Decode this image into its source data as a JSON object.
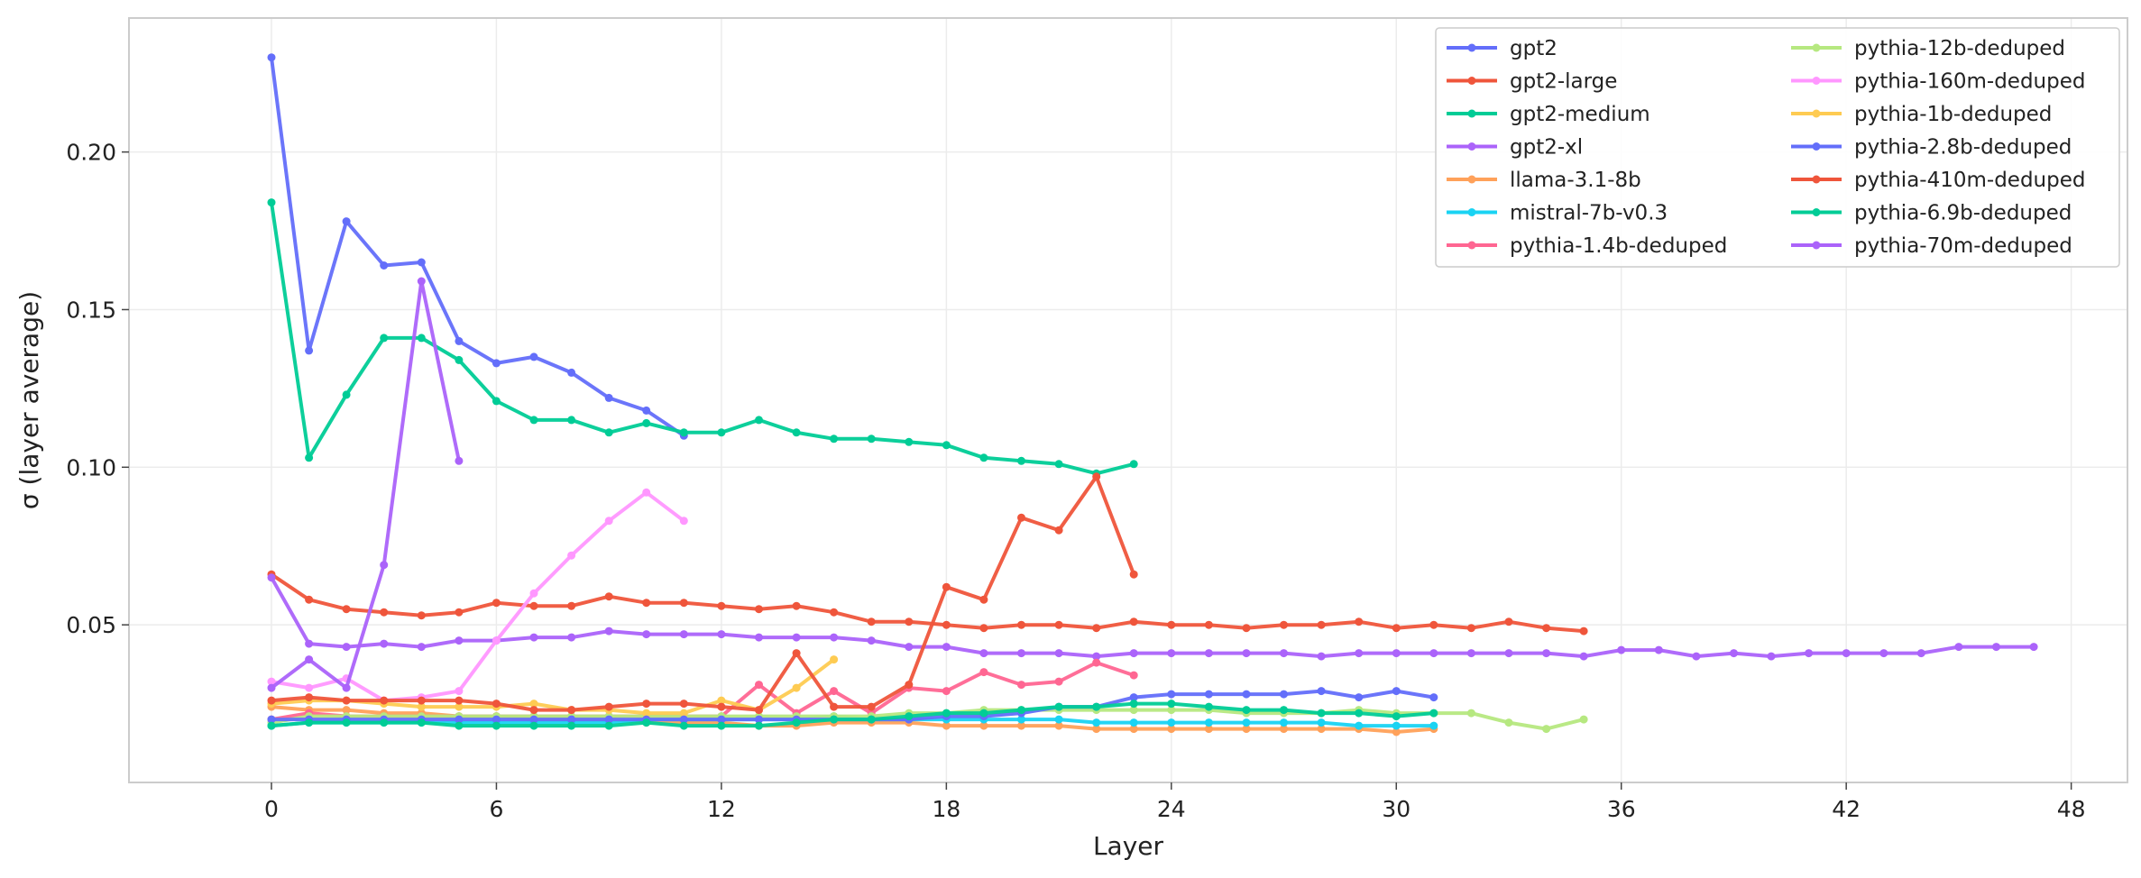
{
  "chart_data": {
    "type": "line",
    "xlabel": "Layer",
    "ylabel": "σ (layer average)",
    "xlim": [
      -3.8,
      49.5
    ],
    "ylim": [
      0.0,
      0.2425
    ],
    "xticks": [
      0,
      6,
      12,
      18,
      24,
      30,
      36,
      42,
      48
    ],
    "yticks": [
      0.05,
      0.1,
      0.15,
      0.2
    ],
    "ytick_labels": [
      "0.05",
      "0.10",
      "0.15",
      "0.20"
    ],
    "grid": true,
    "legend_position": "top-right",
    "legend_columns": 2,
    "series": [
      {
        "name": "gpt2",
        "color": "#636efa",
        "x": [
          0,
          1,
          2,
          3,
          4,
          5,
          6,
          7,
          8,
          9,
          10,
          11
        ],
        "values": [
          0.23,
          0.137,
          0.178,
          0.164,
          0.165,
          0.14,
          0.133,
          0.135,
          0.13,
          0.122,
          0.118,
          0.11
        ]
      },
      {
        "name": "gpt2-large",
        "color": "#ef553b",
        "x": [
          0,
          1,
          2,
          3,
          4,
          5,
          6,
          7,
          8,
          9,
          10,
          11,
          12,
          13,
          14,
          15,
          16,
          17,
          18,
          19,
          20,
          21,
          22,
          23,
          24,
          25,
          26,
          27,
          28,
          29,
          30,
          31,
          32,
          33,
          34,
          35
        ],
        "values": [
          0.066,
          0.058,
          0.055,
          0.054,
          0.053,
          0.054,
          0.057,
          0.056,
          0.056,
          0.059,
          0.057,
          0.057,
          0.056,
          0.055,
          0.056,
          0.054,
          0.051,
          0.051,
          0.05,
          0.049,
          0.05,
          0.05,
          0.049,
          0.051,
          0.05,
          0.05,
          0.049,
          0.05,
          0.05,
          0.051,
          0.049,
          0.05,
          0.049,
          0.051,
          0.049,
          0.048
        ]
      },
      {
        "name": "gpt2-medium",
        "color": "#00cc96",
        "x": [
          0,
          1,
          2,
          3,
          4,
          5,
          6,
          7,
          8,
          9,
          10,
          11,
          12,
          13,
          14,
          15,
          16,
          17,
          18,
          19,
          20,
          21,
          22,
          23
        ],
        "values": [
          0.184,
          0.103,
          0.123,
          0.141,
          0.141,
          0.134,
          0.121,
          0.115,
          0.115,
          0.111,
          0.114,
          0.111,
          0.111,
          0.115,
          0.111,
          0.109,
          0.109,
          0.108,
          0.107,
          0.103,
          0.102,
          0.101,
          0.098,
          0.101
        ]
      },
      {
        "name": "gpt2-xl",
        "color": "#ab63fa",
        "x": [
          0,
          1,
          2,
          3,
          4,
          5,
          6,
          7,
          8,
          9,
          10,
          11,
          12,
          13,
          14,
          15,
          16,
          17,
          18,
          19,
          20,
          21,
          22,
          23,
          24,
          25,
          26,
          27,
          28,
          29,
          30,
          31,
          32,
          33,
          34,
          35,
          36,
          37,
          38,
          39,
          40,
          41,
          42,
          43,
          44,
          45,
          46,
          47
        ],
        "values": [
          0.065,
          0.044,
          0.043,
          0.044,
          0.043,
          0.045,
          0.045,
          0.046,
          0.046,
          0.048,
          0.047,
          0.047,
          0.047,
          0.046,
          0.046,
          0.046,
          0.045,
          0.043,
          0.043,
          0.041,
          0.041,
          0.041,
          0.04,
          0.041,
          0.041,
          0.041,
          0.041,
          0.041,
          0.04,
          0.041,
          0.041,
          0.041,
          0.041,
          0.041,
          0.041,
          0.04,
          0.042,
          0.042,
          0.04,
          0.041,
          0.04,
          0.041,
          0.041,
          0.041,
          0.041,
          0.043,
          0.043,
          0.043
        ]
      },
      {
        "name": "llama-3.1-8b",
        "color": "#ffa15a",
        "x": [
          0,
          1,
          2,
          3,
          4,
          5,
          6,
          7,
          8,
          9,
          10,
          11,
          12,
          13,
          14,
          15,
          16,
          17,
          18,
          19,
          20,
          21,
          22,
          23,
          24,
          25,
          26,
          27,
          28,
          29,
          30,
          31
        ],
        "values": [
          0.024,
          0.023,
          0.023,
          0.022,
          0.022,
          0.021,
          0.021,
          0.02,
          0.02,
          0.02,
          0.019,
          0.019,
          0.019,
          0.018,
          0.018,
          0.019,
          0.019,
          0.019,
          0.018,
          0.018,
          0.018,
          0.018,
          0.017,
          0.017,
          0.017,
          0.017,
          0.017,
          0.017,
          0.017,
          0.017,
          0.016,
          0.017
        ]
      },
      {
        "name": "mistral-7b-v0.3",
        "color": "#19d3f3",
        "x": [
          0,
          1,
          2,
          3,
          4,
          5,
          6,
          7,
          8,
          9,
          10,
          11,
          12,
          13,
          14,
          15,
          16,
          17,
          18,
          19,
          20,
          21,
          22,
          23,
          24,
          25,
          26,
          27,
          28,
          29,
          30,
          31
        ],
        "values": [
          0.018,
          0.019,
          0.019,
          0.019,
          0.019,
          0.019,
          0.019,
          0.019,
          0.019,
          0.019,
          0.02,
          0.02,
          0.02,
          0.02,
          0.02,
          0.021,
          0.02,
          0.02,
          0.02,
          0.02,
          0.02,
          0.02,
          0.019,
          0.019,
          0.019,
          0.019,
          0.019,
          0.019,
          0.019,
          0.018,
          0.018,
          0.018
        ]
      },
      {
        "name": "pythia-1.4b-deduped",
        "color": "#ff6692",
        "x": [
          0,
          1,
          2,
          3,
          4,
          5,
          6,
          7,
          8,
          9,
          10,
          11,
          12,
          13,
          14,
          15,
          16,
          17,
          18,
          19,
          20,
          21,
          22,
          23
        ],
        "values": [
          0.02,
          0.022,
          0.021,
          0.021,
          0.021,
          0.021,
          0.021,
          0.021,
          0.021,
          0.021,
          0.021,
          0.021,
          0.021,
          0.031,
          0.022,
          0.029,
          0.022,
          0.03,
          0.029,
          0.035,
          0.031,
          0.032,
          0.038,
          0.034
        ]
      },
      {
        "name": "pythia-12b-deduped",
        "color": "#b6e880",
        "x": [
          0,
          1,
          2,
          3,
          4,
          5,
          6,
          7,
          8,
          9,
          10,
          11,
          12,
          13,
          14,
          15,
          16,
          17,
          18,
          19,
          20,
          21,
          22,
          23,
          24,
          25,
          26,
          27,
          28,
          29,
          30,
          31,
          32,
          33,
          34,
          35
        ],
        "values": [
          0.019,
          0.021,
          0.021,
          0.021,
          0.021,
          0.021,
          0.021,
          0.021,
          0.021,
          0.021,
          0.021,
          0.021,
          0.021,
          0.021,
          0.021,
          0.021,
          0.021,
          0.022,
          0.022,
          0.023,
          0.023,
          0.023,
          0.023,
          0.023,
          0.023,
          0.023,
          0.022,
          0.022,
          0.022,
          0.023,
          0.022,
          0.022,
          0.022,
          0.019,
          0.017,
          0.02
        ]
      },
      {
        "name": "pythia-160m-deduped",
        "color": "#ff97ff",
        "x": [
          0,
          1,
          2,
          3,
          4,
          5,
          6,
          7,
          8,
          9,
          10,
          11
        ],
        "values": [
          0.032,
          0.03,
          0.033,
          0.026,
          0.027,
          0.029,
          0.045,
          0.06,
          0.072,
          0.083,
          0.092,
          0.083
        ]
      },
      {
        "name": "pythia-1b-deduped",
        "color": "#fecb52",
        "x": [
          0,
          1,
          2,
          3,
          4,
          5,
          6,
          7,
          8,
          9,
          10,
          11,
          12,
          13,
          14,
          15
        ],
        "values": [
          0.025,
          0.026,
          0.026,
          0.025,
          0.024,
          0.024,
          0.024,
          0.025,
          0.023,
          0.023,
          0.022,
          0.022,
          0.026,
          0.023,
          0.03,
          0.039
        ]
      },
      {
        "name": "pythia-2.8b-deduped",
        "color": "#636efa",
        "x": [
          0,
          1,
          2,
          3,
          4,
          5,
          6,
          7,
          8,
          9,
          10,
          11,
          12,
          13,
          14,
          15,
          16,
          17,
          18,
          19,
          20,
          21,
          22,
          23,
          24,
          25,
          26,
          27,
          28,
          29,
          30,
          31
        ],
        "values": [
          0.02,
          0.02,
          0.02,
          0.02,
          0.02,
          0.02,
          0.02,
          0.02,
          0.02,
          0.02,
          0.02,
          0.02,
          0.02,
          0.02,
          0.02,
          0.02,
          0.02,
          0.02,
          0.021,
          0.021,
          0.022,
          0.024,
          0.024,
          0.027,
          0.028,
          0.028,
          0.028,
          0.028,
          0.029,
          0.027,
          0.029,
          0.027
        ]
      },
      {
        "name": "pythia-410m-deduped",
        "color": "#ef553b",
        "x": [
          0,
          1,
          2,
          3,
          4,
          5,
          6,
          7,
          8,
          9,
          10,
          11,
          12,
          13,
          14,
          15,
          16,
          17,
          18,
          19,
          20,
          21,
          22,
          23
        ],
        "values": [
          0.026,
          0.027,
          0.026,
          0.026,
          0.026,
          0.026,
          0.025,
          0.023,
          0.023,
          0.024,
          0.025,
          0.025,
          0.024,
          0.023,
          0.041,
          0.024,
          0.024,
          0.031,
          0.062,
          0.058,
          0.084,
          0.08,
          0.097,
          0.066
        ]
      },
      {
        "name": "pythia-6.9b-deduped",
        "color": "#00cc96",
        "x": [
          0,
          1,
          2,
          3,
          4,
          5,
          6,
          7,
          8,
          9,
          10,
          11,
          12,
          13,
          14,
          15,
          16,
          17,
          18,
          19,
          20,
          21,
          22,
          23,
          24,
          25,
          26,
          27,
          28,
          29,
          30,
          31
        ],
        "values": [
          0.018,
          0.019,
          0.019,
          0.019,
          0.019,
          0.018,
          0.018,
          0.018,
          0.018,
          0.018,
          0.019,
          0.018,
          0.018,
          0.018,
          0.019,
          0.02,
          0.02,
          0.021,
          0.022,
          0.022,
          0.023,
          0.024,
          0.024,
          0.025,
          0.025,
          0.024,
          0.023,
          0.023,
          0.022,
          0.022,
          0.021,
          0.022
        ]
      },
      {
        "name": "pythia-70m-deduped",
        "color": "#ab63fa",
        "x": [
          0,
          1,
          2,
          3,
          4,
          5
        ],
        "values": [
          0.03,
          0.039,
          0.03,
          0.069,
          0.159,
          0.102
        ]
      }
    ]
  }
}
